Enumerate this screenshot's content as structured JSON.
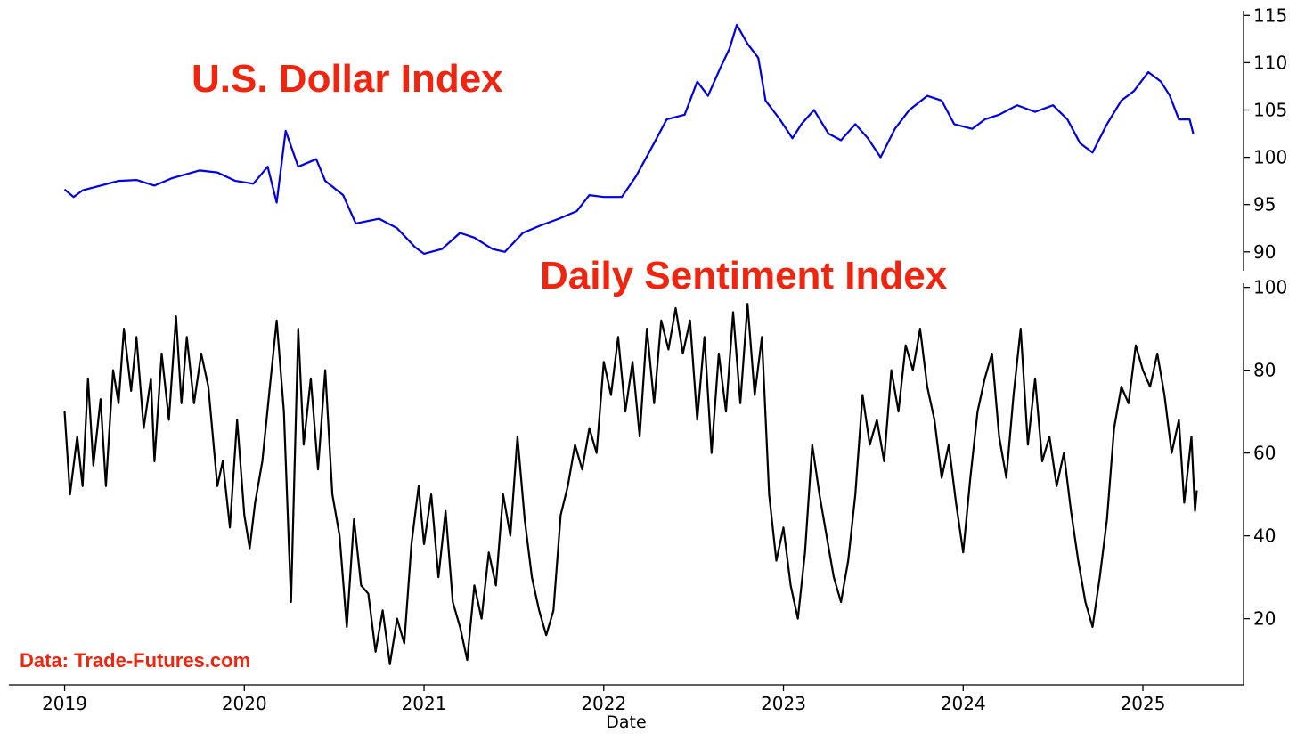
{
  "chart_data": [
    {
      "type": "line",
      "title": "U.S. Dollar Index",
      "yaxis_side": "right",
      "ylim": [
        88,
        115.5
      ],
      "yticks": [
        90,
        95,
        100,
        105,
        110,
        115
      ],
      "series": [
        {
          "color": "#0000e0",
          "points": [
            [
              2019.0,
              96.6
            ],
            [
              2019.05,
              95.8
            ],
            [
              2019.1,
              96.5
            ],
            [
              2019.2,
              97.0
            ],
            [
              2019.3,
              97.5
            ],
            [
              2019.4,
              97.6
            ],
            [
              2019.5,
              97.0
            ],
            [
              2019.6,
              97.8
            ],
            [
              2019.75,
              98.6
            ],
            [
              2019.85,
              98.4
            ],
            [
              2019.95,
              97.5
            ],
            [
              2020.05,
              97.2
            ],
            [
              2020.13,
              99.0
            ],
            [
              2020.18,
              95.2
            ],
            [
              2020.23,
              102.8
            ],
            [
              2020.3,
              99.0
            ],
            [
              2020.4,
              99.8
            ],
            [
              2020.45,
              97.5
            ],
            [
              2020.55,
              96.0
            ],
            [
              2020.62,
              93.0
            ],
            [
              2020.75,
              93.5
            ],
            [
              2020.85,
              92.5
            ],
            [
              2020.95,
              90.5
            ],
            [
              2021.0,
              89.8
            ],
            [
              2021.1,
              90.3
            ],
            [
              2021.2,
              92.0
            ],
            [
              2021.28,
              91.5
            ],
            [
              2021.38,
              90.3
            ],
            [
              2021.45,
              90.0
            ],
            [
              2021.55,
              92.0
            ],
            [
              2021.65,
              92.8
            ],
            [
              2021.75,
              93.5
            ],
            [
              2021.85,
              94.3
            ],
            [
              2021.92,
              96.0
            ],
            [
              2022.0,
              95.8
            ],
            [
              2022.1,
              95.8
            ],
            [
              2022.18,
              98.0
            ],
            [
              2022.28,
              101.5
            ],
            [
              2022.35,
              104.0
            ],
            [
              2022.45,
              104.5
            ],
            [
              2022.52,
              108.0
            ],
            [
              2022.58,
              106.5
            ],
            [
              2022.65,
              109.5
            ],
            [
              2022.7,
              111.5
            ],
            [
              2022.74,
              114.0
            ],
            [
              2022.8,
              112.0
            ],
            [
              2022.86,
              110.5
            ],
            [
              2022.9,
              106.0
            ],
            [
              2022.98,
              104.0
            ],
            [
              2023.05,
              102.0
            ],
            [
              2023.1,
              103.5
            ],
            [
              2023.17,
              105.0
            ],
            [
              2023.25,
              102.5
            ],
            [
              2023.32,
              101.8
            ],
            [
              2023.4,
              103.5
            ],
            [
              2023.47,
              102.0
            ],
            [
              2023.54,
              100.0
            ],
            [
              2023.62,
              103.0
            ],
            [
              2023.7,
              105.0
            ],
            [
              2023.8,
              106.5
            ],
            [
              2023.88,
              106.0
            ],
            [
              2023.95,
              103.5
            ],
            [
              2024.05,
              103.0
            ],
            [
              2024.12,
              104.0
            ],
            [
              2024.2,
              104.5
            ],
            [
              2024.3,
              105.5
            ],
            [
              2024.4,
              104.8
            ],
            [
              2024.5,
              105.5
            ],
            [
              2024.58,
              104.0
            ],
            [
              2024.65,
              101.5
            ],
            [
              2024.72,
              100.5
            ],
            [
              2024.8,
              103.5
            ],
            [
              2024.88,
              106.0
            ],
            [
              2024.95,
              107.0
            ],
            [
              2025.03,
              109.0
            ],
            [
              2025.1,
              108.0
            ],
            [
              2025.15,
              106.5
            ],
            [
              2025.2,
              104.0
            ],
            [
              2025.26,
              104.0
            ],
            [
              2025.28,
              102.5
            ]
          ]
        }
      ]
    },
    {
      "type": "line",
      "title": "Daily Sentiment Index",
      "yaxis_side": "right",
      "ylim": [
        4,
        101
      ],
      "yticks": [
        20,
        40,
        60,
        80,
        100
      ],
      "xlabel": "Date",
      "xlim": [
        2018.69,
        2025.56
      ],
      "xticks": [
        2019,
        2020,
        2021,
        2022,
        2023,
        2024,
        2025
      ],
      "series": [
        {
          "color": "#000000",
          "points": [
            [
              2019.0,
              70
            ],
            [
              2019.03,
              50
            ],
            [
              2019.07,
              64
            ],
            [
              2019.1,
              52
            ],
            [
              2019.13,
              78
            ],
            [
              2019.16,
              57
            ],
            [
              2019.2,
              73
            ],
            [
              2019.23,
              52
            ],
            [
              2019.27,
              80
            ],
            [
              2019.3,
              72
            ],
            [
              2019.33,
              90
            ],
            [
              2019.37,
              75
            ],
            [
              2019.4,
              88
            ],
            [
              2019.44,
              66
            ],
            [
              2019.48,
              78
            ],
            [
              2019.5,
              58
            ],
            [
              2019.54,
              84
            ],
            [
              2019.58,
              68
            ],
            [
              2019.62,
              93
            ],
            [
              2019.65,
              72
            ],
            [
              2019.68,
              88
            ],
            [
              2019.72,
              72
            ],
            [
              2019.76,
              84
            ],
            [
              2019.8,
              76
            ],
            [
              2019.85,
              52
            ],
            [
              2019.88,
              58
            ],
            [
              2019.92,
              42
            ],
            [
              2019.96,
              68
            ],
            [
              2020.0,
              45
            ],
            [
              2020.03,
              37
            ],
            [
              2020.06,
              48
            ],
            [
              2020.1,
              58
            ],
            [
              2020.14,
              75
            ],
            [
              2020.18,
              92
            ],
            [
              2020.22,
              70
            ],
            [
              2020.26,
              24
            ],
            [
              2020.3,
              90
            ],
            [
              2020.33,
              62
            ],
            [
              2020.37,
              78
            ],
            [
              2020.41,
              56
            ],
            [
              2020.45,
              80
            ],
            [
              2020.49,
              50
            ],
            [
              2020.53,
              40
            ],
            [
              2020.57,
              18
            ],
            [
              2020.61,
              44
            ],
            [
              2020.65,
              28
            ],
            [
              2020.69,
              26
            ],
            [
              2020.73,
              12
            ],
            [
              2020.77,
              22
            ],
            [
              2020.81,
              9
            ],
            [
              2020.85,
              20
            ],
            [
              2020.89,
              14
            ],
            [
              2020.93,
              38
            ],
            [
              2020.97,
              52
            ],
            [
              2021.0,
              38
            ],
            [
              2021.04,
              50
            ],
            [
              2021.08,
              30
            ],
            [
              2021.12,
              46
            ],
            [
              2021.16,
              24
            ],
            [
              2021.2,
              18
            ],
            [
              2021.24,
              10
            ],
            [
              2021.28,
              28
            ],
            [
              2021.32,
              20
            ],
            [
              2021.36,
              36
            ],
            [
              2021.4,
              28
            ],
            [
              2021.44,
              50
            ],
            [
              2021.48,
              40
            ],
            [
              2021.52,
              64
            ],
            [
              2021.56,
              44
            ],
            [
              2021.6,
              30
            ],
            [
              2021.64,
              22
            ],
            [
              2021.68,
              16
            ],
            [
              2021.72,
              22
            ],
            [
              2021.76,
              45
            ],
            [
              2021.8,
              52
            ],
            [
              2021.84,
              62
            ],
            [
              2021.88,
              56
            ],
            [
              2021.92,
              66
            ],
            [
              2021.96,
              60
            ],
            [
              2022.0,
              82
            ],
            [
              2022.04,
              74
            ],
            [
              2022.08,
              88
            ],
            [
              2022.12,
              70
            ],
            [
              2022.16,
              82
            ],
            [
              2022.2,
              64
            ],
            [
              2022.24,
              90
            ],
            [
              2022.28,
              72
            ],
            [
              2022.32,
              92
            ],
            [
              2022.36,
              85
            ],
            [
              2022.4,
              95
            ],
            [
              2022.44,
              84
            ],
            [
              2022.48,
              92
            ],
            [
              2022.52,
              68
            ],
            [
              2022.56,
              88
            ],
            [
              2022.6,
              60
            ],
            [
              2022.64,
              84
            ],
            [
              2022.68,
              70
            ],
            [
              2022.72,
              94
            ],
            [
              2022.76,
              72
            ],
            [
              2022.8,
              96
            ],
            [
              2022.84,
              74
            ],
            [
              2022.88,
              88
            ],
            [
              2022.92,
              50
            ],
            [
              2022.96,
              34
            ],
            [
              2023.0,
              42
            ],
            [
              2023.04,
              28
            ],
            [
              2023.08,
              20
            ],
            [
              2023.12,
              36
            ],
            [
              2023.16,
              62
            ],
            [
              2023.2,
              50
            ],
            [
              2023.24,
              40
            ],
            [
              2023.28,
              30
            ],
            [
              2023.32,
              24
            ],
            [
              2023.36,
              34
            ],
            [
              2023.4,
              50
            ],
            [
              2023.44,
              74
            ],
            [
              2023.48,
              62
            ],
            [
              2023.52,
              68
            ],
            [
              2023.56,
              58
            ],
            [
              2023.6,
              80
            ],
            [
              2023.64,
              70
            ],
            [
              2023.68,
              86
            ],
            [
              2023.72,
              80
            ],
            [
              2023.76,
              90
            ],
            [
              2023.8,
              76
            ],
            [
              2023.84,
              68
            ],
            [
              2023.88,
              54
            ],
            [
              2023.92,
              62
            ],
            [
              2023.96,
              48
            ],
            [
              2024.0,
              36
            ],
            [
              2024.04,
              54
            ],
            [
              2024.08,
              70
            ],
            [
              2024.12,
              78
            ],
            [
              2024.16,
              84
            ],
            [
              2024.2,
              64
            ],
            [
              2024.24,
              54
            ],
            [
              2024.28,
              74
            ],
            [
              2024.32,
              90
            ],
            [
              2024.36,
              62
            ],
            [
              2024.4,
              78
            ],
            [
              2024.44,
              58
            ],
            [
              2024.48,
              64
            ],
            [
              2024.52,
              52
            ],
            [
              2024.56,
              60
            ],
            [
              2024.6,
              46
            ],
            [
              2024.64,
              34
            ],
            [
              2024.68,
              24
            ],
            [
              2024.72,
              18
            ],
            [
              2024.76,
              30
            ],
            [
              2024.8,
              44
            ],
            [
              2024.84,
              66
            ],
            [
              2024.88,
              76
            ],
            [
              2024.92,
              72
            ],
            [
              2024.96,
              86
            ],
            [
              2025.0,
              80
            ],
            [
              2025.04,
              76
            ],
            [
              2025.08,
              84
            ],
            [
              2025.12,
              74
            ],
            [
              2025.16,
              60
            ],
            [
              2025.2,
              68
            ],
            [
              2025.23,
              48
            ],
            [
              2025.25,
              56
            ],
            [
              2025.27,
              64
            ],
            [
              2025.29,
              46
            ],
            [
              2025.3,
              51
            ]
          ]
        }
      ]
    }
  ],
  "source_note": "Data: Trade-Futures.com"
}
